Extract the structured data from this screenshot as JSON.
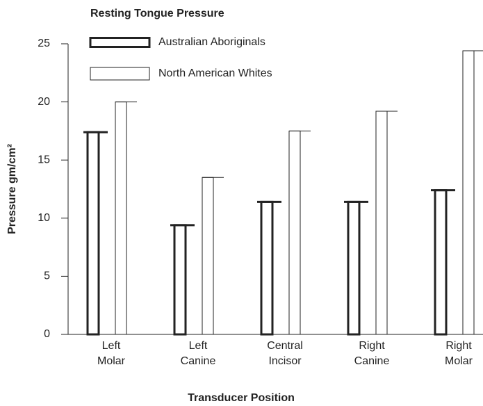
{
  "chart_data": {
    "type": "bar",
    "title": "Resting Tongue Pressure",
    "xlabel": "Transducer Position",
    "ylabel": "Pressure gm/cm²",
    "categories": [
      [
        "Left",
        "Molar"
      ],
      [
        "Left",
        "Canine"
      ],
      [
        "Central",
        "Incisor"
      ],
      [
        "Right",
        "Canine"
      ],
      [
        "Right",
        "Molar"
      ]
    ],
    "series": [
      {
        "name": "Australian Aboriginals",
        "color": "#ffffff",
        "edgecolor": "#222222",
        "values": [
          17.4,
          9.4,
          11.4,
          11.4,
          12.4
        ]
      },
      {
        "name": "North American Whites",
        "color": "#ffffff",
        "edgecolor": "#222222",
        "values": [
          20.0,
          13.5,
          17.5,
          19.2,
          24.4
        ]
      }
    ],
    "ylim": [
      0,
      25
    ],
    "yticks": [
      0,
      5,
      10,
      15,
      20,
      25
    ],
    "legend": "upper left",
    "grid": false
  }
}
